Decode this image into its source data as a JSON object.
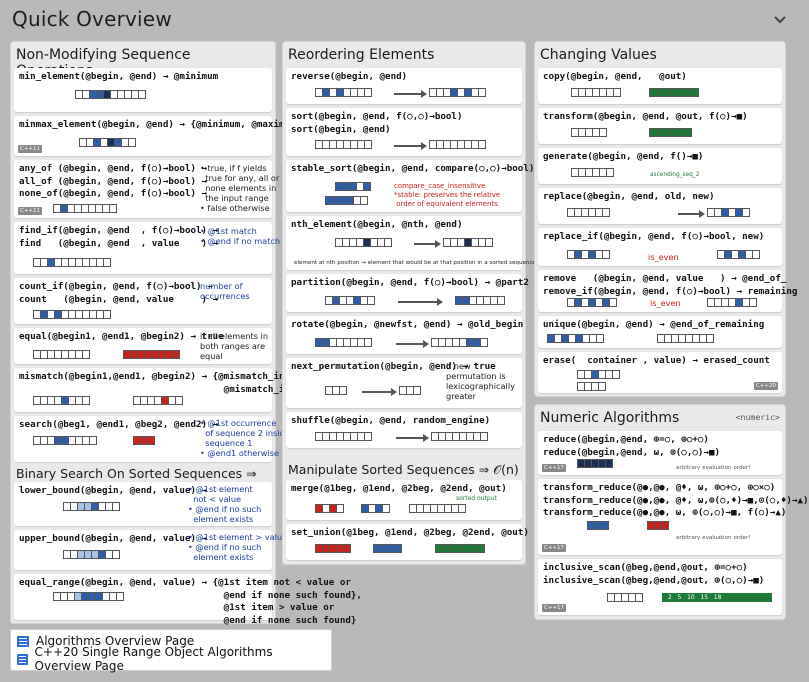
{
  "header": {
    "title": "Quick Overview"
  },
  "columns": {
    "nonmod": {
      "title": "Non-Modifying Sequence Operations",
      "cards": [
        {
          "sig": "min_element(@begin, @end) → @minimum",
          "badge": ""
        },
        {
          "sig": "minmax_element(@begin, @end) → {@minimum, @maximum}",
          "badge": "C++11"
        },
        {
          "sig": "any_of (@begin, @end, f(○)→bool) →\nall_of (@begin, @end, f(○)→bool) →\nnone_of(@begin, @end, f(○)→bool) →",
          "note": "• true, if f yields\n  true for any, all or\n  none elements in\n  the input range\n• false otherwise",
          "badge": "C++11"
        },
        {
          "sig": "find_if(@begin, @end  , f(○)→bool) →\nfind   (@begin, @end  , value    ) →",
          "note": "• @1st match\n• @end if no match",
          "badge": ""
        },
        {
          "sig": "count_if(@begin, @end, f(○)→bool) →\ncount   (@begin, @end, value     ) →",
          "note": "number of\noccurrences",
          "badge": ""
        },
        {
          "sig": "equal(@begin1, @end1, @begin2) → true",
          "note": "if all elements in\nboth ranges are\nequal",
          "badge": ""
        },
        {
          "sig": "mismatch(@begin1,@end1, @begin2) → {@mismatch_in1,\n                                     @mismatch_in2}",
          "badge": ""
        },
        {
          "sig": "search(@beg1, @end1, @beg2, @end2) →",
          "note": "• @1st occurrence\n  of sequence 2 inside\n  sequence 1\n• @end1 otherwise",
          "badge": ""
        }
      ],
      "binary_title": "Binary Search On Sorted Sequences ⇒ 𝒪(log n)",
      "binary_cards": [
        {
          "sig": "lower_bound(@begin, @end, value) →",
          "note": "• @1st element\n  not < value\n• @end if no such\n  element exists"
        },
        {
          "sig": "upper_bound(@begin, @end, value) →",
          "note": "• @1st element > value\n• @end if no such\n  element exists"
        },
        {
          "sig": "equal_range(@begin, @end, value) → {@1st item not < value or\n                                     @end if none such found},\n                                     @1st item > value or\n                                     @end if none such found}"
        }
      ]
    },
    "reorder": {
      "title": "Reordering Elements",
      "cards": [
        {
          "sig": "reverse(@begin, @end)"
        },
        {
          "sig": "sort(@begin, @end, f(○,○)→bool)\nsort(@begin, @end)"
        },
        {
          "sig": "stable_sort(@begin, @end, compare(○,○)→bool)",
          "note": "compare_case_insensitive\n*stable: preserves the relative\n order of equivalent elements"
        },
        {
          "sig": "nth_element(@begin, @nth, @end)",
          "note": "element at nth position → element that would be at that position in a sorted sequence"
        },
        {
          "sig": "partition(@begin, @end, f(○)→bool) → @part2"
        },
        {
          "sig": "rotate(@begin, @newfst, @end) → @old_begin"
        },
        {
          "sig": "next_permutation(@begin, @end) → true",
          "note": "if new\npermutation is\nlexicographically\ngreater"
        },
        {
          "sig": "shuffle(@begin, @end, random_engine)"
        }
      ],
      "manip_title": "Manipulate Sorted Sequences ⇒ 𝒪(n)",
      "manip_cards": [
        {
          "sig": "merge(@1beg, @1end, @2beg, @2end, @out)",
          "note": "sorted output"
        },
        {
          "sig": "set_union(@1beg, @1end, @2beg, @2end, @out)"
        }
      ]
    },
    "changing": {
      "title": "Changing Values",
      "cards": [
        {
          "sig": "copy(@begin, @end,   @out)"
        },
        {
          "sig": "transform(@begin, @end, @out, f(○)→■)"
        },
        {
          "sig": "generate(@begin, @end, f()→■)",
          "note": "ascending_seq_2"
        },
        {
          "sig": "replace(@begin, @end, old, new)"
        },
        {
          "sig": "replace_if(@begin, @end, f(○)→bool, new)",
          "note": "is_even"
        },
        {
          "sig": "remove   (@begin, @end, value   ) → @end_of_\nremove_if(@begin, @end, f(○)→bool) → remaining",
          "note": "is_even"
        },
        {
          "sig": "unique(@begin, @end) → @end_of_remaining"
        },
        {
          "sig": "erase(  container , value) → erased_count",
          "badge": "C++20"
        }
      ]
    },
    "numeric": {
      "title": "Numeric Algorithms",
      "header_tag": "<numeric>",
      "cards": [
        {
          "sig": "reduce(@begin,@end, ⊕=○, ⊕○+○)\nreduce(@begin,@end, ω, ⊕(○,○)→■)",
          "note": "arbitrary evaluation order!",
          "badge": "C++17"
        },
        {
          "sig": "transform_reduce(@●,@●, @♦, ω, ⊕○+○, ⊕○×○)\ntransform_reduce(@●,@●, @♦, ω,⊕(○,♦)→■,⊙(○,♦)→▲)\ntransform_reduce(@●,@●, ω, ⊕(○,○)→■, f(○)→▲)",
          "note": "arbitrary evaluation order!",
          "badge": "C++17"
        },
        {
          "sig": "inclusive_scan(@beg,@end,@out, ⊕=○+○)\ninclusive_scan(@beg,@end,@out, ⊕(○,○)→■)",
          "note": "2   5   10   15   18",
          "badge": "C++17"
        }
      ]
    }
  },
  "links": [
    {
      "label": "Algorithms Overview Page"
    },
    {
      "label": "C++20 Single Range Object Algorithms Overview Page"
    }
  ]
}
